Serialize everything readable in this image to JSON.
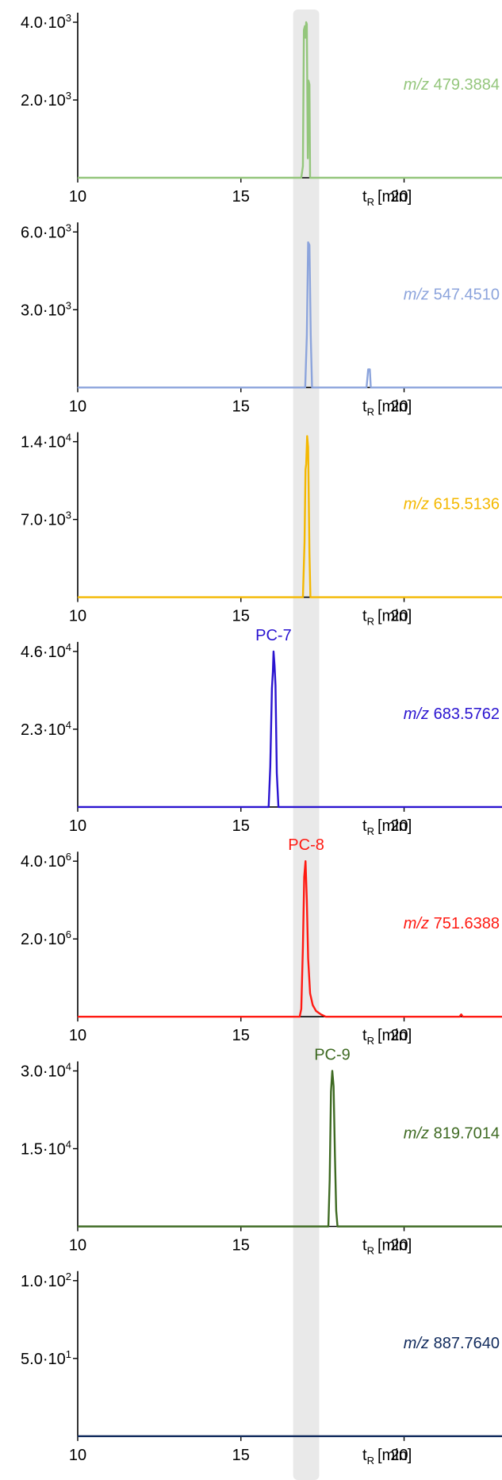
{
  "chart_data": {
    "type": "line",
    "x_unit": "min",
    "x_range": [
      10,
      23
    ],
    "x_ticks": [
      10,
      15,
      20
    ],
    "x_axis_label": {
      "main": "t",
      "sub": "R",
      "unit": "[min]"
    },
    "highlight_band": {
      "x_start": 16.6,
      "x_end": 17.4,
      "color": "#e9e9e9"
    },
    "colors": {
      "axis": "#000000",
      "band": "#e9e9e9"
    },
    "panels": [
      {
        "mz_prefix": "m/z",
        "mz_value": "479.3884",
        "color": "#94c67c",
        "ymax": 4000,
        "y_ticks": [
          2000,
          4000
        ],
        "y_tick_labels": [
          "2.0·10",
          "4.0·10"
        ],
        "y_tick_exponents": [
          "3",
          "3"
        ],
        "peak_label": "",
        "points": [
          [
            10,
            0
          ],
          [
            16.85,
            0
          ],
          [
            16.9,
            300
          ],
          [
            16.93,
            3800
          ],
          [
            16.96,
            3900
          ],
          [
            16.98,
            3600
          ],
          [
            17.0,
            4000
          ],
          [
            17.02,
            3950
          ],
          [
            17.05,
            500
          ],
          [
            17.07,
            2500
          ],
          [
            17.1,
            2400
          ],
          [
            17.12,
            0
          ],
          [
            23,
            0
          ]
        ]
      },
      {
        "mz_prefix": "m/z",
        "mz_value": "547.4510",
        "color": "#8ca4dc",
        "ymax": 6000,
        "y_ticks": [
          3000,
          6000
        ],
        "y_tick_labels": [
          "3.0·10",
          "6.0·10"
        ],
        "y_tick_exponents": [
          "3",
          "3"
        ],
        "peak_label": "",
        "points": [
          [
            10,
            0
          ],
          [
            16.97,
            0
          ],
          [
            17.02,
            2000
          ],
          [
            17.06,
            5600
          ],
          [
            17.1,
            5500
          ],
          [
            17.14,
            2000
          ],
          [
            17.18,
            0
          ],
          [
            18.85,
            0
          ],
          [
            18.9,
            700
          ],
          [
            18.95,
            700
          ],
          [
            18.98,
            0
          ],
          [
            23,
            0
          ]
        ]
      },
      {
        "mz_prefix": "m/z",
        "mz_value": "615.5136",
        "color": "#f4b800",
        "ymax": 14000,
        "y_ticks": [
          7000,
          14000
        ],
        "y_tick_labels": [
          "7.0·10",
          "1.4·10"
        ],
        "y_tick_exponents": [
          "3",
          "4"
        ],
        "peak_label": "",
        "points": [
          [
            10,
            0
          ],
          [
            16.9,
            0
          ],
          [
            16.95,
            5000
          ],
          [
            16.98,
            11500
          ],
          [
            17.0,
            12000
          ],
          [
            17.03,
            14500
          ],
          [
            17.06,
            13500
          ],
          [
            17.1,
            4000
          ],
          [
            17.13,
            0
          ],
          [
            23,
            0
          ]
        ]
      },
      {
        "mz_prefix": "m/z",
        "mz_value": "683.5762",
        "color": "#2a14d0",
        "ymax": 46000,
        "y_ticks": [
          23000,
          46000
        ],
        "y_tick_labels": [
          "2.3·10",
          "4.6·10"
        ],
        "y_tick_exponents": [
          "4",
          "4"
        ],
        "peak_label": "PC-7",
        "peak_x": 16.0,
        "points": [
          [
            10,
            0
          ],
          [
            15.85,
            0
          ],
          [
            15.9,
            12000
          ],
          [
            15.95,
            35000
          ],
          [
            15.98,
            40000
          ],
          [
            16.0,
            46000
          ],
          [
            16.03,
            42000
          ],
          [
            16.06,
            36000
          ],
          [
            16.1,
            10000
          ],
          [
            16.15,
            0
          ],
          [
            23,
            0
          ]
        ]
      },
      {
        "mz_prefix": "m/z",
        "mz_value": "751.6388",
        "color": "#ff1a12",
        "ymax": 4000000,
        "y_ticks": [
          2000000,
          4000000
        ],
        "y_tick_labels": [
          "2.0·10",
          "4.0·10"
        ],
        "y_tick_exponents": [
          "6",
          "6"
        ],
        "peak_label": "PC-8",
        "peak_x": 17.0,
        "points": [
          [
            10,
            0
          ],
          [
            16.8,
            0
          ],
          [
            16.85,
            200000
          ],
          [
            16.9,
            1800000
          ],
          [
            16.94,
            3600000
          ],
          [
            16.98,
            4000000
          ],
          [
            17.02,
            3000000
          ],
          [
            17.06,
            1500000
          ],
          [
            17.12,
            600000
          ],
          [
            17.2,
            300000
          ],
          [
            17.3,
            150000
          ],
          [
            17.45,
            60000
          ],
          [
            17.6,
            0
          ],
          [
            21.7,
            0
          ],
          [
            21.75,
            60000
          ],
          [
            21.8,
            0
          ],
          [
            23,
            0
          ]
        ]
      },
      {
        "mz_prefix": "m/z",
        "mz_value": "819.7014",
        "color": "#3e6a22",
        "ymax": 30000,
        "y_ticks": [
          15000,
          30000
        ],
        "y_tick_labels": [
          "1.5·10",
          "3.0·10"
        ],
        "y_tick_exponents": [
          "4",
          "4"
        ],
        "peak_label": "PC-9",
        "peak_x": 17.8,
        "points": [
          [
            10,
            0
          ],
          [
            17.68,
            0
          ],
          [
            17.72,
            9000
          ],
          [
            17.76,
            26000
          ],
          [
            17.8,
            30000
          ],
          [
            17.84,
            27000
          ],
          [
            17.88,
            14000
          ],
          [
            17.92,
            3000
          ],
          [
            17.96,
            0
          ],
          [
            23,
            0
          ]
        ]
      },
      {
        "mz_prefix": "m/z",
        "mz_value": "887.7640",
        "color": "#102a5c",
        "ymax": 100,
        "y_ticks": [
          50,
          100
        ],
        "y_tick_labels": [
          "5.0·10",
          "1.0·10"
        ],
        "y_tick_exponents": [
          "1",
          "2"
        ],
        "peak_label": "",
        "points": [
          [
            10,
            0
          ],
          [
            23,
            0
          ]
        ]
      }
    ]
  }
}
